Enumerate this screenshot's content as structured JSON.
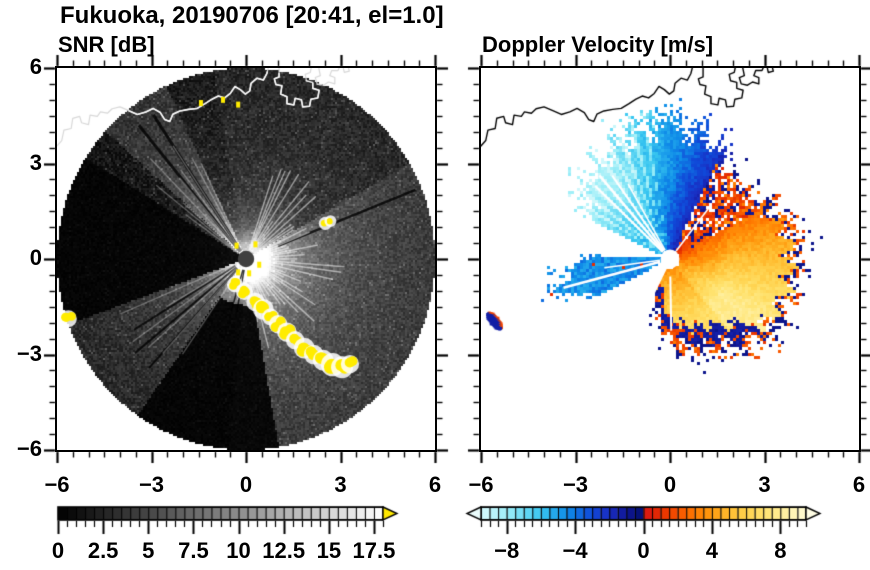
{
  "figure": {
    "title": "Fukuoka, 20190706 [20:41, el=1.0]",
    "panels": [
      {
        "id": "snr",
        "title": "SNR [dB]"
      },
      {
        "id": "vel",
        "title": "Doppler Velocity [m/s]"
      }
    ]
  },
  "chart_data": {
    "type": "heatmap",
    "subtype": "radar_ppi_pair",
    "station": "Fukuoka",
    "date": "20190706",
    "time": "20:41",
    "elevation": "1.0",
    "axes": {
      "xlim": [
        -6,
        6
      ],
      "ylim": [
        -6,
        6
      ],
      "major_tick_values": [
        -6,
        -3,
        0,
        3,
        6
      ],
      "minor_tick_step": 0.5,
      "x_tick_labels": [
        "−6",
        "−3",
        "0",
        "3",
        "6"
      ],
      "y_tick_labels": [
        "6",
        "3",
        "0",
        "−3",
        "−6"
      ],
      "grid": false
    },
    "coast_color_snr": "#ffffff",
    "coast_color_snr_outside": "#d8d8d8",
    "coast_color_vel": "#000000",
    "coastline": {
      "main": [
        [
          -6.05,
          3.5
        ],
        [
          -5.85,
          3.72
        ],
        [
          -5.78,
          4.05
        ],
        [
          -5.55,
          4.1
        ],
        [
          -5.5,
          4.42
        ],
        [
          -5.28,
          4.48
        ],
        [
          -5.22,
          4.28
        ],
        [
          -5.0,
          4.22
        ],
        [
          -4.95,
          4.52
        ],
        [
          -4.72,
          4.48
        ],
        [
          -4.62,
          4.62
        ],
        [
          -4.4,
          4.58
        ],
        [
          -4.25,
          4.72
        ],
        [
          -4.0,
          4.78
        ],
        [
          -3.72,
          4.66
        ],
        [
          -3.45,
          4.54
        ],
        [
          -3.18,
          4.62
        ],
        [
          -2.95,
          4.73
        ],
        [
          -2.72,
          4.6
        ],
        [
          -2.58,
          4.38
        ],
        [
          -2.42,
          4.32
        ],
        [
          -2.32,
          4.55
        ],
        [
          -2.1,
          4.65
        ],
        [
          -1.82,
          4.7
        ],
        [
          -1.55,
          4.73
        ],
        [
          -1.3,
          4.88
        ],
        [
          -1.08,
          5.02
        ],
        [
          -0.88,
          5.12
        ],
        [
          -0.68,
          5.06
        ],
        [
          -0.5,
          5.2
        ],
        [
          -0.35,
          5.42
        ],
        [
          -0.18,
          5.32
        ],
        [
          -0.02,
          5.18
        ],
        [
          0.12,
          5.28
        ],
        [
          0.16,
          5.52
        ],
        [
          0.35,
          5.68
        ],
        [
          0.55,
          5.62
        ],
        [
          0.66,
          5.82
        ],
        [
          0.72,
          6.05
        ]
      ],
      "port1": [
        [
          1.05,
          6.05
        ],
        [
          1.05,
          5.72
        ],
        [
          0.9,
          5.66
        ],
        [
          0.95,
          5.48
        ],
        [
          1.14,
          5.44
        ],
        [
          1.1,
          5.18
        ],
        [
          1.3,
          5.1
        ],
        [
          1.3,
          4.88
        ],
        [
          1.52,
          4.84
        ],
        [
          1.56,
          5.05
        ],
        [
          1.76,
          5.0
        ],
        [
          1.8,
          4.78
        ],
        [
          2.02,
          4.8
        ],
        [
          2.06,
          5.02
        ],
        [
          2.28,
          5.06
        ],
        [
          2.32,
          5.3
        ],
        [
          2.12,
          5.36
        ],
        [
          2.12,
          5.55
        ],
        [
          1.92,
          5.6
        ],
        [
          1.88,
          5.8
        ],
        [
          2.04,
          5.86
        ],
        [
          2.08,
          6.05
        ]
      ],
      "port2": [
        [
          2.3,
          6.05
        ],
        [
          2.36,
          5.76
        ],
        [
          2.2,
          5.7
        ],
        [
          2.26,
          5.5
        ],
        [
          2.46,
          5.46
        ],
        [
          2.62,
          5.56
        ],
        [
          2.82,
          5.5
        ],
        [
          2.82,
          5.7
        ],
        [
          2.66,
          5.76
        ],
        [
          2.72,
          5.92
        ],
        [
          2.92,
          5.92
        ],
        [
          2.98,
          6.05
        ]
      ],
      "port3": [
        [
          3.08,
          6.05
        ],
        [
          3.12,
          5.86
        ],
        [
          3.28,
          5.9
        ],
        [
          3.24,
          6.05
        ]
      ]
    },
    "panels": [
      {
        "id": "snr",
        "title": "SNR [dB]",
        "colorbar": {
          "type": "grayscale",
          "range": [
            0,
            18
          ],
          "segment_step": 0.5,
          "tick_values": [
            0,
            2.5,
            5,
            7.5,
            10,
            12.5,
            15,
            17.5
          ],
          "tick_labels": [
            "0",
            "2.5",
            "5",
            "7.5",
            "10",
            "12.5",
            "15",
            "17.5"
          ],
          "minor_tick_step": 0.5,
          "min_color": "#000000",
          "max_color": "#ffffff",
          "over_arrow_color": "#ffe800"
        },
        "features": {
          "scan_radius": 6,
          "center_dot_radius": 0.26,
          "center_dot_color": "#3f3f3f",
          "amp": 24,
          "az_sectors": [
            {
              "az": [
                250,
                302
              ],
              "gain": 0.03
            },
            {
              "az": [
                302,
                312
              ],
              "gain": 0.22
            },
            {
              "az": [
                312,
                335
              ],
              "gain": 0.8,
              "decay": 0.85
            },
            {
              "az": [
                335,
                15
              ],
              "gain": 0.5
            },
            {
              "az": [
                15,
                60
              ],
              "gain": 0.55
            },
            {
              "az": [
                60,
                170
              ],
              "gain": 1.0,
              "decay": 0.98
            },
            {
              "az": [
                170,
                215
              ],
              "gain": 1.0,
              "max_r": 1.45
            },
            {
              "az": [
                215,
                250
              ],
              "gain": 0.65,
              "decay": 0.9
            }
          ],
          "dark_rays": [
            {
              "az": 321,
              "w": 3,
              "r": [
                0.3,
                5.4
              ]
            },
            {
              "az": 327,
              "w": 3,
              "r": [
                0.3,
                5.4
              ]
            },
            {
              "az": 68,
              "w": 2.5,
              "r": [
                1.1,
                5.8
              ]
            },
            {
              "az": 222,
              "w": 2,
              "r": [
                0.4,
                4.6
              ]
            },
            {
              "az": 230,
              "w": 2,
              "r": [
                0.4,
                4.6
              ]
            },
            {
              "az": 238,
              "w": 2,
              "r": [
                0.4,
                4.2
              ]
            },
            {
              "az": 190,
              "w": 1.5,
              "r": [
                0.35,
                1.7
              ]
            },
            {
              "az": 196,
              "w": 1.5,
              "r": [
                0.35,
                1.7
              ]
            }
          ],
          "bright_streak_bands": [
            {
              "az": [
                18,
                170
              ],
              "step": 4,
              "len": [
                1.3,
                3.2
              ],
              "alpha": 0.5
            },
            {
              "az": [
                306,
                336
              ],
              "step": 3,
              "len": [
                2.0,
                4.5
              ],
              "alpha": 0.3
            },
            {
              "az": [
                214,
                248
              ],
              "step": 5,
              "len": [
                2.5,
                4.8
              ],
              "alpha": 0.28
            }
          ],
          "clutter_color": "#ffec00",
          "clutter_chain": [
            [
              -0.35,
              -0.8,
              0.18
            ],
            [
              -0.05,
              -1.02,
              0.2
            ],
            [
              0.3,
              -1.35,
              0.22
            ],
            [
              0.55,
              -1.58,
              0.26
            ],
            [
              0.78,
              -1.82,
              0.2
            ],
            [
              1.02,
              -2.05,
              0.22
            ],
            [
              1.3,
              -2.3,
              0.24
            ],
            [
              1.56,
              -2.55,
              0.22
            ],
            [
              1.85,
              -2.8,
              0.26
            ],
            [
              2.15,
              -3.0,
              0.24
            ],
            [
              2.45,
              -3.18,
              0.26
            ],
            [
              2.75,
              -3.32,
              0.3
            ],
            [
              3.05,
              -3.4,
              0.28
            ],
            [
              3.3,
              -3.3,
              0.22
            ]
          ],
          "clutter_spots": [
            [
              2.52,
              1.12,
              0.14
            ],
            [
              2.68,
              1.19,
              0.12
            ],
            [
              -5.64,
              -1.88,
              0.2
            ]
          ],
          "clutter_dots": [
            [
              -1.43,
              4.9
            ],
            [
              -0.73,
              5.0
            ],
            [
              -0.25,
              4.85
            ],
            [
              0.1,
              -0.45
            ],
            [
              -0.25,
              -0.42
            ],
            [
              0.3,
              0.46
            ],
            [
              -0.3,
              0.42
            ],
            [
              0.42,
              -0.18
            ]
          ]
        }
      },
      {
        "id": "vel",
        "title": "Doppler Velocity [m/s]",
        "colorbar": {
          "type": "blue_red_diverging",
          "range": [
            -9.5,
            9.5
          ],
          "segment_step": 0.5,
          "tick_values": [
            -8,
            -4,
            0,
            4,
            8
          ],
          "tick_labels": [
            "−8",
            "−4",
            "0",
            "4",
            "8"
          ],
          "minor_tick_step": 0.5,
          "under_arrow_color": "#eafcfc",
          "over_arrow_color": "#fffde4"
        },
        "colormap": {
          "stops_neg": [
            [
              -10,
              "#eafcfc"
            ],
            [
              -8,
              "#9ceef8"
            ],
            [
              -6,
              "#38c6f0"
            ],
            [
              -4.5,
              "#0f8ce8"
            ],
            [
              -3,
              "#1048d8"
            ],
            [
              -2,
              "#1a2cc0"
            ],
            [
              -1,
              "#0f1694"
            ],
            [
              -0.01,
              "#020f6e"
            ]
          ],
          "stops_pos": [
            [
              0.01,
              "#d81414"
            ],
            [
              1,
              "#e62e00"
            ],
            [
              2,
              "#f65200"
            ],
            [
              3,
              "#ff7a00"
            ],
            [
              4,
              "#ff9c10"
            ],
            [
              5,
              "#ffbc30"
            ],
            [
              6,
              "#ffd24e"
            ],
            [
              7,
              "#ffe26e"
            ],
            [
              8,
              "#ffed96"
            ],
            [
              9,
              "#fff7c2"
            ],
            [
              10,
              "#fffde4"
            ]
          ]
        },
        "features": {
          "hole_radius": 0.3,
          "blue_fan": {
            "az": [
              295,
              32
            ],
            "profile": [
              [
                295,
                2.3
              ],
              [
                305,
                3.05
              ],
              [
                320,
                3.45
              ],
              [
                345,
                3.75
              ],
              [
                360,
                3.9
              ],
              [
                375,
                3.7
              ],
              [
                392,
                3.2
              ]
            ],
            "edge_az": 36,
            "span": 70
          },
          "sw_wedge": {
            "az": [
              243,
              273
            ],
            "profile": [
              [
                243,
                2.2
              ],
              [
                251,
                3.2
              ],
              [
                255,
                3.5
              ],
              [
                263,
                3.0
              ],
              [
                273,
                2.1
              ]
            ],
            "v_center": -4.6
          },
          "orange_fan": {
            "az": [
              32,
              205
            ],
            "profile": [
              [
                32,
                2.8
              ],
              [
                55,
                3.1
              ],
              [
                75,
                3.7
              ],
              [
                100,
                3.85
              ],
              [
                130,
                3.6
              ],
              [
                150,
                2.9
              ],
              [
                170,
                2.6
              ],
              [
                183,
                2.2
              ],
              [
                195,
                1.35
              ],
              [
                205,
                1.1
              ]
            ],
            "ref_az": 38,
            "span": 85
          },
          "south_border": {
            "az": [
              128,
              203
            ],
            "width": 0.5,
            "v": -1.0
          },
          "ne_speckle": {
            "az": [
              26,
              62
            ],
            "r": [
              0.75,
              3.3
            ]
          },
          "top_speckle": {
            "az": [
              340,
              356
            ],
            "r": [
              4.0,
              4.75
            ]
          },
          "spot": {
            "center": [
              -5.57,
              -1.95
            ],
            "major": 0.34,
            "minor": 0.14,
            "angle_deg": 140,
            "core_v": -1.4,
            "rim_v": 1.6
          },
          "white_rays": [
            {
              "az": 314,
              "w": 2.2,
              "r": [
                0.32,
                3.3
              ]
            },
            {
              "az": 319.5,
              "w": 2.6,
              "r": [
                0.32,
                3.45
              ]
            },
            {
              "az": 325,
              "w": 2.0,
              "r": [
                0.32,
                3.2
              ]
            },
            {
              "az": 330.5,
              "w": 1.6,
              "r": [
                0.32,
                2.7
              ]
            },
            {
              "az": 255,
              "w": 2.6,
              "r": [
                0.32,
                3.5
              ]
            },
            {
              "az": 262.5,
              "w": 1.6,
              "r": [
                0.32,
                2.1
              ]
            },
            {
              "az": 206,
              "w": 2.6,
              "r": [
                0.32,
                1.45
              ]
            },
            {
              "az": 179,
              "w": 2.0,
              "r": [
                0.55,
                2.25
              ]
            },
            {
              "az": 37.5,
              "w": 1.6,
              "r": [
                0.32,
                2.1
              ]
            }
          ]
        }
      }
    ]
  }
}
